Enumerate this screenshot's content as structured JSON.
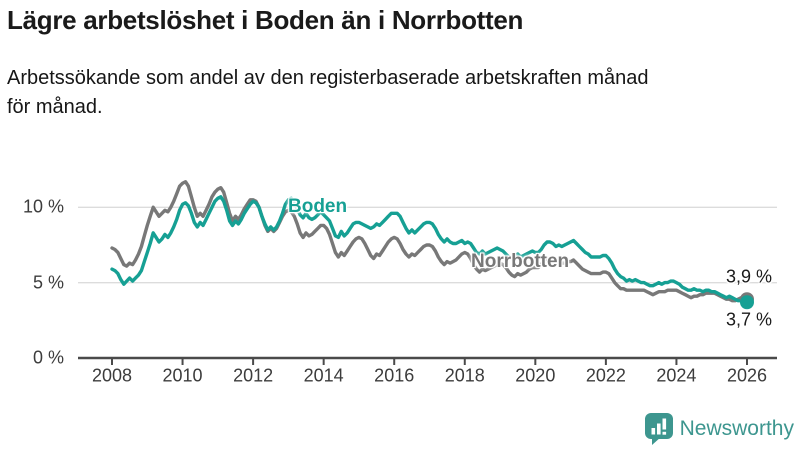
{
  "header": {
    "title": "Lägre arbetslöshet i Boden än i Norrbotten",
    "subtitle_line1": "Arbetssökande som andel av den registerbaserade arbetskraften månad",
    "subtitle_line2": "för månad."
  },
  "colors": {
    "boden_teal": "#16a094",
    "norrbotten_gray": "#787878",
    "grid": "#dcdcdc",
    "axis": "#4a4a4a",
    "axis_text": "#3c3c3c",
    "text": "#1a1a1a",
    "brand_teal": "#3d968f"
  },
  "chart_data": {
    "type": "line",
    "unit": "%",
    "x_axis": {
      "start_year": 2008,
      "points_per_year": 12,
      "ticks": [
        2008,
        2010,
        2012,
        2014,
        2016,
        2018,
        2020,
        2022,
        2024,
        2026
      ]
    },
    "y_axis": {
      "range": [
        0,
        12.5
      ],
      "ticks": [
        {
          "value": 0,
          "label": "0 %"
        },
        {
          "value": 5,
          "label": "5 %"
        },
        {
          "value": 10,
          "label": "10 %"
        }
      ]
    },
    "series": [
      {
        "name": "Norrbotten",
        "color": "#787878",
        "end_label": "3,9 %",
        "end_value": 3.9,
        "values": [
          7.3,
          7.2,
          7.0,
          6.6,
          6.2,
          6.1,
          6.3,
          6.2,
          6.5,
          6.9,
          7.4,
          8.1,
          8.8,
          9.4,
          10.0,
          9.7,
          9.4,
          9.6,
          9.8,
          9.7,
          10.0,
          10.4,
          10.9,
          11.4,
          11.6,
          11.7,
          11.4,
          10.7,
          10.0,
          9.4,
          9.6,
          9.4,
          9.8,
          10.2,
          10.7,
          11.0,
          11.2,
          11.3,
          11.0,
          10.3,
          9.6,
          9.1,
          9.4,
          9.2,
          9.5,
          9.9,
          10.2,
          10.5,
          10.5,
          10.4,
          10.0,
          9.4,
          8.8,
          8.4,
          8.6,
          8.4,
          8.6,
          9.0,
          9.4,
          9.7,
          9.8,
          9.7,
          9.4,
          8.9,
          8.3,
          8.0,
          8.3,
          8.1,
          8.2,
          8.4,
          8.6,
          8.8,
          8.8,
          8.6,
          8.2,
          7.6,
          7.0,
          6.7,
          7.0,
          6.8,
          7.1,
          7.4,
          7.7,
          7.9,
          8.0,
          7.9,
          7.6,
          7.2,
          6.8,
          6.6,
          6.9,
          6.8,
          7.1,
          7.4,
          7.7,
          7.9,
          8.0,
          7.9,
          7.6,
          7.2,
          6.9,
          6.7,
          6.9,
          6.8,
          7.0,
          7.2,
          7.4,
          7.5,
          7.5,
          7.4,
          7.1,
          6.7,
          6.4,
          6.2,
          6.4,
          6.3,
          6.4,
          6.5,
          6.7,
          6.9,
          7.0,
          6.9,
          6.6,
          6.2,
          5.9,
          5.7,
          5.9,
          5.8,
          5.9,
          6.0,
          6.1,
          6.2,
          6.3,
          6.2,
          6.0,
          5.7,
          5.5,
          5.4,
          5.6,
          5.5,
          5.6,
          5.7,
          5.9,
          6.0,
          6.0,
          6.0,
          6.2,
          6.5,
          6.6,
          6.6,
          6.5,
          6.4,
          6.4,
          6.3,
          6.3,
          6.4,
          6.4,
          6.5,
          6.3,
          6.1,
          5.9,
          5.8,
          5.7,
          5.6,
          5.6,
          5.6,
          5.6,
          5.7,
          5.7,
          5.6,
          5.3,
          5.0,
          4.8,
          4.6,
          4.6,
          4.5,
          4.5,
          4.5,
          4.5,
          4.5,
          4.5,
          4.5,
          4.4,
          4.3,
          4.2,
          4.3,
          4.4,
          4.4,
          4.4,
          4.5,
          4.5,
          4.5,
          4.5,
          4.4,
          4.3,
          4.2,
          4.1,
          4.0,
          4.1,
          4.1,
          4.2,
          4.2,
          4.3,
          4.3,
          4.3,
          4.3,
          4.2,
          4.1,
          4.0,
          3.9,
          3.9,
          3.8,
          3.8,
          3.9,
          4.0,
          4.0,
          3.9
        ]
      },
      {
        "name": "Boden",
        "color": "#16a094",
        "end_label": "3,7 %",
        "end_value": 3.7,
        "values": [
          5.9,
          5.8,
          5.6,
          5.2,
          4.9,
          5.1,
          5.3,
          5.1,
          5.3,
          5.5,
          5.8,
          6.4,
          7.0,
          7.6,
          8.3,
          8.0,
          7.7,
          7.9,
          8.2,
          8.0,
          8.3,
          8.7,
          9.2,
          9.8,
          10.2,
          10.3,
          10.1,
          9.6,
          9.0,
          8.7,
          9.0,
          8.8,
          9.2,
          9.6,
          10.0,
          10.4,
          10.6,
          10.7,
          10.4,
          9.8,
          9.1,
          8.8,
          9.1,
          8.9,
          9.2,
          9.6,
          9.9,
          10.2,
          10.4,
          10.3,
          10.0,
          9.4,
          8.9,
          8.5,
          8.7,
          8.5,
          8.7,
          9.1,
          9.6,
          10.2,
          10.5,
          10.6,
          10.3,
          9.9,
          9.5,
          9.3,
          9.6,
          9.3,
          9.2,
          9.3,
          9.5,
          9.7,
          9.5,
          9.3,
          9.1,
          8.6,
          8.1,
          8.0,
          8.4,
          8.1,
          8.3,
          8.6,
          8.9,
          9.0,
          9.0,
          8.9,
          8.8,
          8.7,
          8.6,
          8.7,
          8.9,
          8.8,
          9.0,
          9.2,
          9.4,
          9.6,
          9.6,
          9.6,
          9.4,
          9.0,
          8.6,
          8.3,
          8.5,
          8.3,
          8.5,
          8.7,
          8.9,
          9.0,
          9.0,
          8.9,
          8.6,
          8.2,
          7.9,
          7.7,
          7.9,
          7.7,
          7.6,
          7.6,
          7.7,
          7.8,
          7.6,
          7.7,
          7.6,
          7.3,
          7.0,
          6.9,
          7.1,
          6.9,
          7.0,
          7.1,
          7.2,
          7.3,
          7.2,
          7.1,
          6.9,
          6.7,
          6.6,
          6.7,
          6.9,
          6.7,
          6.8,
          6.9,
          7.0,
          7.1,
          7.0,
          7.0,
          7.2,
          7.5,
          7.7,
          7.7,
          7.6,
          7.4,
          7.5,
          7.4,
          7.5,
          7.6,
          7.7,
          7.8,
          7.6,
          7.4,
          7.2,
          7.0,
          6.9,
          6.7,
          6.7,
          6.7,
          6.7,
          6.8,
          6.8,
          6.6,
          6.3,
          5.9,
          5.6,
          5.4,
          5.3,
          5.1,
          5.2,
          5.1,
          5.2,
          5.1,
          5.0,
          5.0,
          4.9,
          4.8,
          4.8,
          4.9,
          5.0,
          4.9,
          5.0,
          5.0,
          5.1,
          5.1,
          5.0,
          4.9,
          4.7,
          4.6,
          4.5,
          4.5,
          4.6,
          4.5,
          4.5,
          4.4,
          4.5,
          4.5,
          4.4,
          4.4,
          4.3,
          4.2,
          4.1,
          4.0,
          4.1,
          4.0,
          3.9,
          3.8,
          3.8,
          3.8,
          3.7
        ]
      }
    ]
  },
  "footer": {
    "brand": "Newsworthy"
  }
}
